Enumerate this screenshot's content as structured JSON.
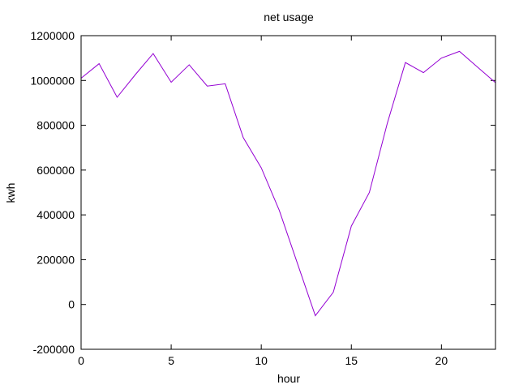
{
  "chart_data": {
    "type": "line",
    "title": "net usage",
    "xlabel": "hour",
    "ylabel": "kwh",
    "xlim": [
      0,
      23
    ],
    "ylim": [
      -200000,
      1200000
    ],
    "xticks": [
      0,
      5,
      10,
      15,
      20
    ],
    "yticks": [
      -200000,
      0,
      200000,
      400000,
      600000,
      800000,
      1000000,
      1200000
    ],
    "grid": false,
    "legend": "none",
    "series": [
      {
        "color": "#9400d3",
        "x": [
          0,
          1,
          2,
          3,
          4,
          5,
          6,
          7,
          8,
          9,
          10,
          11,
          12,
          13,
          14,
          15,
          16,
          17,
          18,
          19,
          20,
          21,
          22,
          23
        ],
        "y": [
          1010000,
          1075000,
          925000,
          1025000,
          1120000,
          992000,
          1070000,
          975000,
          985000,
          745000,
          610000,
          420000,
          185000,
          -50000,
          55000,
          350000,
          500000,
          810000,
          1080000,
          1035000,
          1100000,
          1130000,
          1060000,
          990000
        ]
      }
    ]
  }
}
